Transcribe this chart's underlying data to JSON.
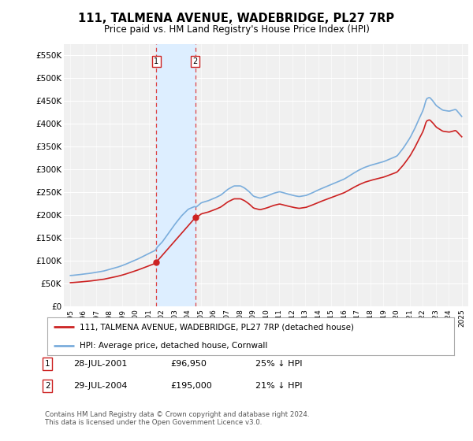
{
  "title": "111, TALMENA AVENUE, WADEBRIDGE, PL27 7RP",
  "subtitle": "Price paid vs. HM Land Registry's House Price Index (HPI)",
  "ylim": [
    0,
    575000
  ],
  "yticks": [
    0,
    50000,
    100000,
    150000,
    200000,
    250000,
    300000,
    350000,
    400000,
    450000,
    500000,
    550000
  ],
  "ytick_labels": [
    "£0",
    "£50K",
    "£100K",
    "£150K",
    "£200K",
    "£250K",
    "£300K",
    "£350K",
    "£400K",
    "£450K",
    "£500K",
    "£550K"
  ],
  "sale1_date": 2001.58,
  "sale1_price": 96950,
  "sale2_date": 2004.58,
  "sale2_price": 195000,
  "hpi_color": "#7aaddc",
  "price_color": "#cc2222",
  "vline_color": "#dd4444",
  "highlight_color": "#ddeeff",
  "legend_line1": "111, TALMENA AVENUE, WADEBRIDGE, PL27 7RP (detached house)",
  "legend_line2": "HPI: Average price, detached house, Cornwall",
  "table_row1": [
    "1",
    "28-JUL-2001",
    "£96,950",
    "25% ↓ HPI"
  ],
  "table_row2": [
    "2",
    "29-JUL-2004",
    "£195,000",
    "21% ↓ HPI"
  ],
  "footnote": "Contains HM Land Registry data © Crown copyright and database right 2024.\nThis data is licensed under the Open Government Licence v3.0.",
  "background_color": "#ffffff",
  "plot_bg_color": "#f0f0f0"
}
